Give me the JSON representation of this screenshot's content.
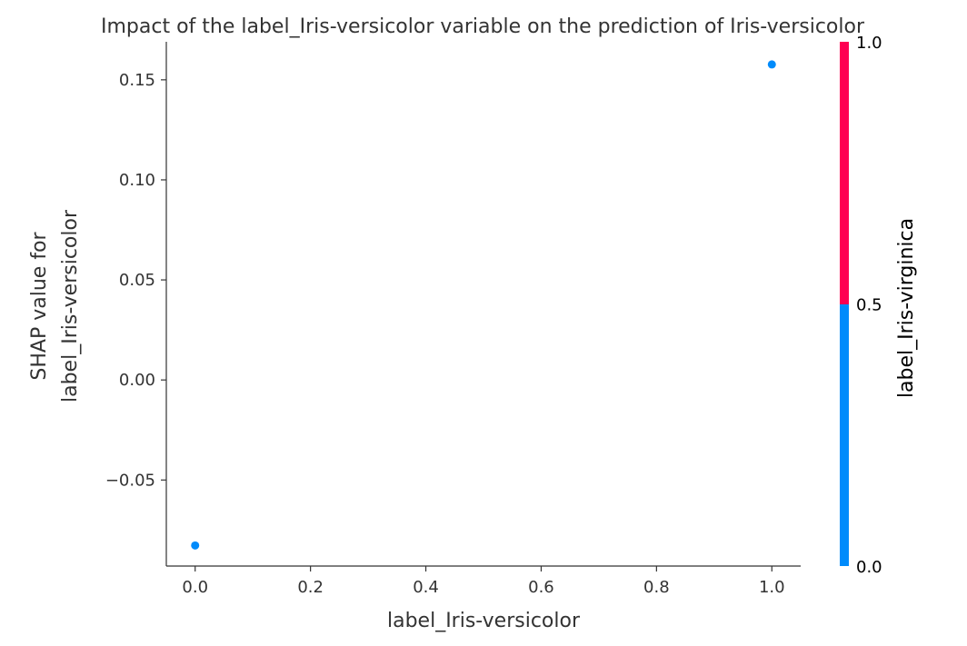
{
  "chart_data": {
    "type": "scatter",
    "title": "Impact of the label_Iris-versicolor variable on the prediction of Iris-versicolor",
    "xlabel": "label_Iris-versicolor",
    "ylabel": [
      "SHAP value for",
      "label_Iris-versicolor"
    ],
    "xlim": [
      -0.05,
      1.05
    ],
    "ylim": [
      -0.093,
      0.169
    ],
    "x_ticks": [
      0.0,
      0.2,
      0.4,
      0.6,
      0.8,
      1.0
    ],
    "x_tick_labels": [
      "0.0",
      "0.2",
      "0.4",
      "0.6",
      "0.8",
      "1.0"
    ],
    "y_ticks": [
      -0.05,
      0.0,
      0.05,
      0.1,
      0.15
    ],
    "y_tick_labels": [
      "−0.05",
      "0.00",
      "0.05",
      "0.10",
      "0.15"
    ],
    "points": [
      {
        "x": 0.0,
        "y": -0.0827,
        "color_value": 0.0
      },
      {
        "x": 1.0,
        "y": 0.1577,
        "color_value": 0.0
      }
    ],
    "grid": false,
    "colorbar": {
      "label": "label_Iris-virginica",
      "range": [
        0.0,
        1.0
      ],
      "ticks": [
        0.0,
        0.5,
        1.0
      ],
      "tick_labels": [
        "0.0",
        "0.5",
        "1.0"
      ],
      "low_color": "#008bfb",
      "high_color": "#ff0052"
    },
    "point_color": "#008bfb"
  }
}
